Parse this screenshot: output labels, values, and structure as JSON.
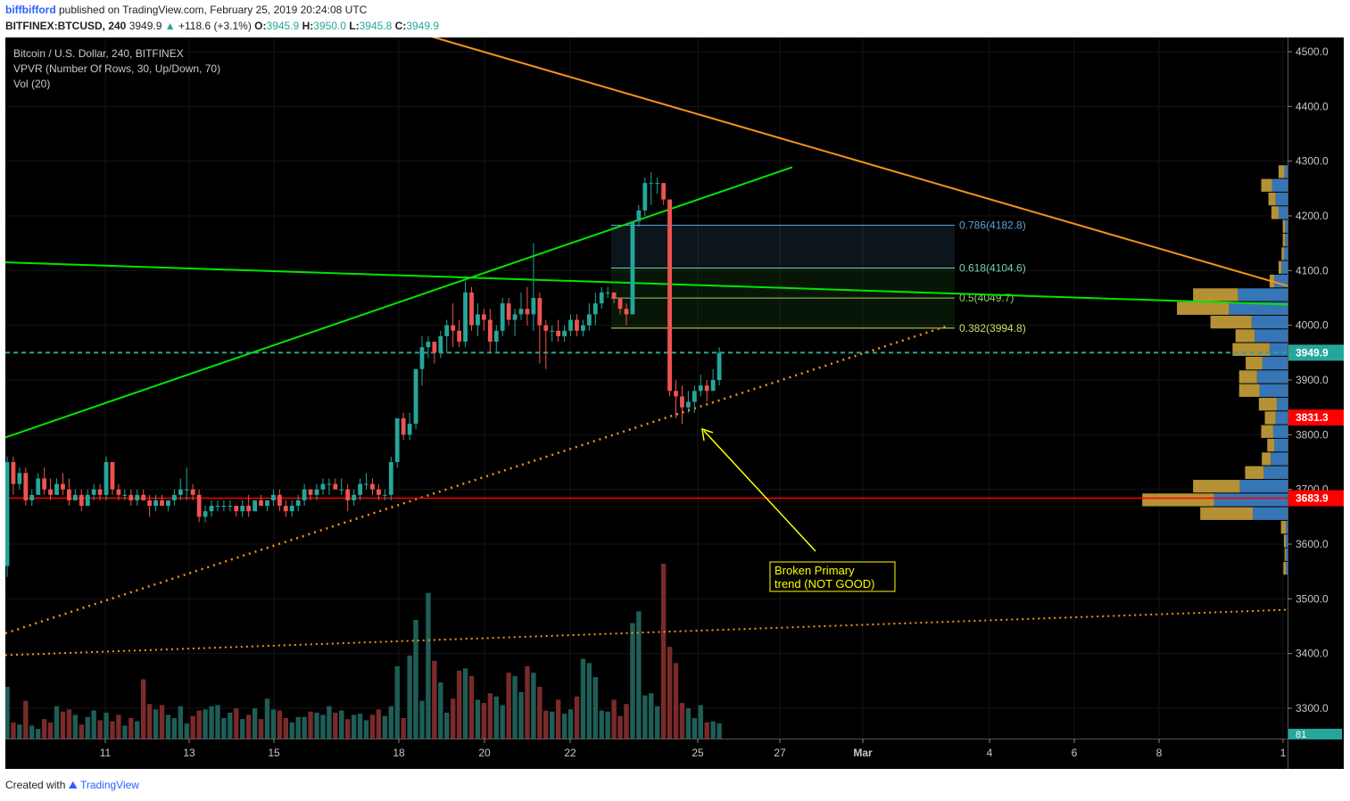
{
  "header": {
    "author": "biffbifford",
    "published_text": "published on TradingView.com, February 25, 2019 20:24:08 UTC",
    "symbol": "BITFINEX:BTCUSD, 240",
    "last": "3949.9",
    "change": "+118.6 (+3.1%)",
    "open_label": "O:",
    "open": "3945.9",
    "high_label": "H:",
    "high": "3950.0",
    "low_label": "L:",
    "low": "3945.8",
    "close_label": "C:",
    "close": "3949.9"
  },
  "legend": {
    "title": "Bitcoin / U.S. Dollar, 240, BITFINEX",
    "indicator": "VPVR (Number Of Rows, 30, Up/Down, 70)",
    "volume": "Vol (20)"
  },
  "footer": {
    "created_with": "Created with",
    "brand": "TradingView"
  },
  "colors": {
    "background": "#000000",
    "up": "#26a69a",
    "down": "#ef5350",
    "green_line": "#00e600",
    "orange_line": "#f7931a",
    "red_line": "#ff0000",
    "fib_blue": "#5aa2d6",
    "fib_green": "#74d3a7",
    "fib_yellow": "#c9e265"
  },
  "chart_data": {
    "type": "candlestick",
    "x_ticks": [
      "11",
      "13",
      "15",
      "18",
      "20",
      "22",
      "25",
      "27",
      "Mar",
      "4",
      "6",
      "8",
      "1"
    ],
    "y_ticks": [
      "4500.0",
      "4400.0",
      "4300.0",
      "4200.0",
      "4100.0",
      "4000.0",
      "3900.0",
      "3800.0",
      "3700.0",
      "3600.0",
      "3500.0",
      "3400.0",
      "3300.0"
    ],
    "ylim": [
      3240,
      4550
    ],
    "price_labels": [
      {
        "value": 3949.9,
        "label": "3949.9",
        "color": "#26a69a"
      },
      {
        "value": 3831.3,
        "label": "3831.3",
        "color": "#ff0000"
      },
      {
        "value": 3683.9,
        "label": "3683.9",
        "color": "#ff0000"
      }
    ],
    "volume_label": "81",
    "fib_levels": [
      {
        "ratio": "0.786",
        "value": 4182.8,
        "label": "0.786(4182.8)",
        "color": "#5aa2d6"
      },
      {
        "ratio": "0.618",
        "value": 4104.6,
        "label": "0.618(4104.6)",
        "color": "#74d3a7"
      },
      {
        "ratio": "0.5",
        "value": 4049.7,
        "label": "0.5(4049.7)",
        "color": "#9ccc65"
      },
      {
        "ratio": "0.382",
        "value": 3994.8,
        "label": "0.382(3994.8)",
        "color": "#c9e265"
      }
    ],
    "horizontal_lines": [
      {
        "value": 3683.9,
        "color": "#ff0000"
      },
      {
        "value": 3949.9,
        "color": "#26a69a"
      }
    ],
    "annotation": {
      "text": [
        "Broken Primary",
        "trend (NOT GOOD)"
      ],
      "points_to": 3820
    },
    "candles": [
      [
        3560,
        3760,
        3540,
        3750
      ],
      [
        3750,
        3760,
        3690,
        3710
      ],
      [
        3710,
        3740,
        3700,
        3730
      ],
      [
        3730,
        3740,
        3670,
        3680
      ],
      [
        3680,
        3700,
        3670,
        3690
      ],
      [
        3690,
        3730,
        3690,
        3720
      ],
      [
        3720,
        3740,
        3690,
        3700
      ],
      [
        3700,
        3720,
        3680,
        3690
      ],
      [
        3690,
        3720,
        3690,
        3710
      ],
      [
        3710,
        3730,
        3690,
        3700
      ],
      [
        3700,
        3720,
        3670,
        3680
      ],
      [
        3680,
        3700,
        3680,
        3690
      ],
      [
        3690,
        3700,
        3660,
        3670
      ],
      [
        3670,
        3700,
        3670,
        3690
      ],
      [
        3690,
        3710,
        3680,
        3700
      ],
      [
        3700,
        3710,
        3680,
        3690
      ],
      [
        3690,
        3760,
        3680,
        3750
      ],
      [
        3750,
        3750,
        3690,
        3700
      ],
      [
        3700,
        3710,
        3680,
        3690
      ],
      [
        3690,
        3700,
        3680,
        3690
      ],
      [
        3690,
        3700,
        3670,
        3680
      ],
      [
        3680,
        3700,
        3670,
        3690
      ],
      [
        3690,
        3700,
        3680,
        3680
      ],
      [
        3680,
        3690,
        3650,
        3670
      ],
      [
        3670,
        3690,
        3660,
        3680
      ],
      [
        3680,
        3690,
        3670,
        3670
      ],
      [
        3670,
        3680,
        3660,
        3680
      ],
      [
        3680,
        3700,
        3670,
        3690
      ],
      [
        3690,
        3720,
        3680,
        3700
      ],
      [
        3700,
        3740,
        3680,
        3700
      ],
      [
        3700,
        3710,
        3680,
        3690
      ],
      [
        3690,
        3700,
        3640,
        3650
      ],
      [
        3650,
        3670,
        3640,
        3660
      ],
      [
        3660,
        3680,
        3650,
        3670
      ],
      [
        3670,
        3680,
        3660,
        3670
      ],
      [
        3670,
        3680,
        3660,
        3670
      ],
      [
        3670,
        3680,
        3660,
        3670
      ],
      [
        3670,
        3670,
        3650,
        3660
      ],
      [
        3660,
        3680,
        3650,
        3670
      ],
      [
        3670,
        3690,
        3650,
        3660
      ],
      [
        3660,
        3680,
        3660,
        3680
      ],
      [
        3680,
        3690,
        3670,
        3670
      ],
      [
        3670,
        3680,
        3660,
        3680
      ],
      [
        3680,
        3700,
        3670,
        3690
      ],
      [
        3690,
        3700,
        3660,
        3670
      ],
      [
        3670,
        3680,
        3650,
        3660
      ],
      [
        3660,
        3680,
        3650,
        3670
      ],
      [
        3670,
        3690,
        3660,
        3680
      ],
      [
        3680,
        3710,
        3670,
        3700
      ],
      [
        3700,
        3700,
        3680,
        3690
      ],
      [
        3690,
        3710,
        3680,
        3700
      ],
      [
        3700,
        3720,
        3690,
        3710
      ],
      [
        3710,
        3720,
        3690,
        3710
      ],
      [
        3710,
        3720,
        3700,
        3700
      ],
      [
        3700,
        3720,
        3690,
        3700
      ],
      [
        3700,
        3710,
        3660,
        3680
      ],
      [
        3680,
        3700,
        3670,
        3690
      ],
      [
        3690,
        3720,
        3680,
        3710
      ],
      [
        3710,
        3730,
        3700,
        3710
      ],
      [
        3710,
        3720,
        3690,
        3700
      ],
      [
        3700,
        3710,
        3680,
        3690
      ],
      [
        3690,
        3700,
        3680,
        3690
      ],
      [
        3690,
        3760,
        3680,
        3750
      ],
      [
        3750,
        3830,
        3740,
        3830
      ],
      [
        3830,
        3840,
        3790,
        3800
      ],
      [
        3800,
        3840,
        3790,
        3820
      ],
      [
        3820,
        3920,
        3810,
        3920
      ],
      [
        3920,
        3980,
        3890,
        3960
      ],
      [
        3960,
        3980,
        3940,
        3970
      ],
      [
        3970,
        3970,
        3930,
        3950
      ],
      [
        3950,
        3990,
        3940,
        3980
      ],
      [
        3980,
        4010,
        3950,
        4000
      ],
      [
        4000,
        4040,
        3960,
        3990
      ],
      [
        3990,
        4010,
        3960,
        3970
      ],
      [
        3970,
        4080,
        3960,
        4060
      ],
      [
        4060,
        4070,
        3990,
        4000
      ],
      [
        4000,
        4040,
        3980,
        4020
      ],
      [
        4020,
        4030,
        3990,
        4010
      ],
      [
        4010,
        4030,
        3950,
        3970
      ],
      [
        3970,
        4000,
        3950,
        3990
      ],
      [
        3990,
        4050,
        3980,
        4040
      ],
      [
        4040,
        4050,
        4000,
        4010
      ],
      [
        4010,
        4030,
        3980,
        4020
      ],
      [
        4020,
        4060,
        4010,
        4030
      ],
      [
        4030,
        4070,
        4000,
        4020
      ],
      [
        4020,
        4150,
        3990,
        4050
      ],
      [
        4050,
        4060,
        3930,
        4000
      ],
      [
        4000,
        4010,
        3920,
        3990
      ],
      [
        3990,
        4000,
        3970,
        3990
      ],
      [
        3990,
        4010,
        3970,
        3980
      ],
      [
        3980,
        4000,
        3970,
        3990
      ],
      [
        3990,
        4020,
        3980,
        4010
      ],
      [
        4010,
        4020,
        3980,
        3990
      ],
      [
        3990,
        4010,
        3980,
        4000
      ],
      [
        4000,
        4040,
        3990,
        4020
      ],
      [
        4020,
        4060,
        4000,
        4040
      ],
      [
        4040,
        4070,
        4030,
        4060
      ],
      [
        4060,
        4070,
        4050,
        4060
      ],
      [
        4060,
        4060,
        4040,
        4050
      ],
      [
        4050,
        4050,
        4020,
        4030
      ],
      [
        4030,
        4040,
        4000,
        4020
      ],
      [
        4020,
        4190,
        4020,
        4190
      ],
      [
        4190,
        4220,
        4180,
        4210
      ],
      [
        4210,
        4270,
        4200,
        4260
      ],
      [
        4260,
        4280,
        4220,
        4260
      ],
      [
        4260,
        4270,
        4240,
        4260
      ],
      [
        4260,
        4260,
        4220,
        4230
      ],
      [
        4230,
        4230,
        3870,
        3880
      ],
      [
        3880,
        3900,
        3830,
        3870
      ],
      [
        3870,
        3890,
        3820,
        3850
      ],
      [
        3850,
        3880,
        3840,
        3860
      ],
      [
        3860,
        3890,
        3840,
        3880
      ],
      [
        3880,
        3910,
        3870,
        3890
      ],
      [
        3890,
        3900,
        3860,
        3880
      ],
      [
        3880,
        3920,
        3880,
        3900
      ],
      [
        3900,
        3960,
        3890,
        3949.9
      ]
    ],
    "volume": [
      48,
      15,
      13,
      35,
      12,
      9,
      18,
      15,
      30,
      25,
      27,
      22,
      13,
      20,
      26,
      17,
      24,
      16,
      22,
      12,
      19,
      16,
      55,
      32,
      27,
      31,
      22,
      19,
      30,
      14,
      21,
      26,
      27,
      30,
      31,
      19,
      24,
      28,
      18,
      22,
      28,
      18,
      37,
      27,
      26,
      19,
      15,
      20,
      20,
      25,
      24,
      22,
      30,
      24,
      26,
      18,
      22,
      23,
      17,
      22,
      27,
      21,
      30,
      67,
      19,
      77,
      110,
      35,
      135,
      72,
      52,
      24,
      37,
      63,
      65,
      58,
      36,
      33,
      42,
      39,
      31,
      61,
      58,
      43,
      67,
      61,
      48,
      26,
      25,
      36,
      23,
      27,
      39,
      74,
      70,
      57,
      26,
      25,
      36,
      21,
      32,
      107,
      118,
      40,
      42,
      30,
      162,
      85,
      70,
      33,
      28,
      19,
      31,
      15,
      16,
      14,
      42
    ],
    "vpvr": [
      {
        "price": 4280,
        "up": 10,
        "down": 5
      },
      {
        "price": 4255,
        "up": 18,
        "down": 26
      },
      {
        "price": 4230,
        "up": 12,
        "down": 20
      },
      {
        "price": 4205,
        "up": 12,
        "down": 15
      },
      {
        "price": 4180,
        "up": 4,
        "down": 4
      },
      {
        "price": 4155,
        "up": 4,
        "down": 4
      },
      {
        "price": 4130,
        "up": 4,
        "down": 6
      },
      {
        "price": 4105,
        "up": 5,
        "down": 10
      },
      {
        "price": 4080,
        "up": 8,
        "down": 22
      },
      {
        "price": 4055,
        "up": 75,
        "down": 83
      },
      {
        "price": 4030,
        "up": 87,
        "down": 98
      },
      {
        "price": 4005,
        "up": 69,
        "down": 60
      },
      {
        "price": 3980,
        "up": 32,
        "down": 55
      },
      {
        "price": 3955,
        "up": 62,
        "down": 30
      },
      {
        "price": 3930,
        "up": 28,
        "down": 42
      },
      {
        "price": 3905,
        "up": 30,
        "down": 51
      },
      {
        "price": 3880,
        "up": 34,
        "down": 47
      },
      {
        "price": 3855,
        "up": 30,
        "down": 18
      },
      {
        "price": 3830,
        "up": 18,
        "down": 20
      },
      {
        "price": 3805,
        "up": 20,
        "down": 24
      },
      {
        "price": 3780,
        "up": 12,
        "down": 22
      },
      {
        "price": 3755,
        "up": 15,
        "down": 28
      },
      {
        "price": 3730,
        "up": 31,
        "down": 40
      },
      {
        "price": 3705,
        "up": 78,
        "down": 80
      },
      {
        "price": 3680,
        "up": 120,
        "down": 123
      },
      {
        "price": 3655,
        "up": 88,
        "down": 58
      },
      {
        "price": 3630,
        "up": 8,
        "down": 3
      },
      {
        "price": 3605,
        "up": 3,
        "down": 3
      },
      {
        "price": 3580,
        "up": 2,
        "down": 3
      },
      {
        "price": 3555,
        "up": 4,
        "down": 3
      }
    ]
  }
}
